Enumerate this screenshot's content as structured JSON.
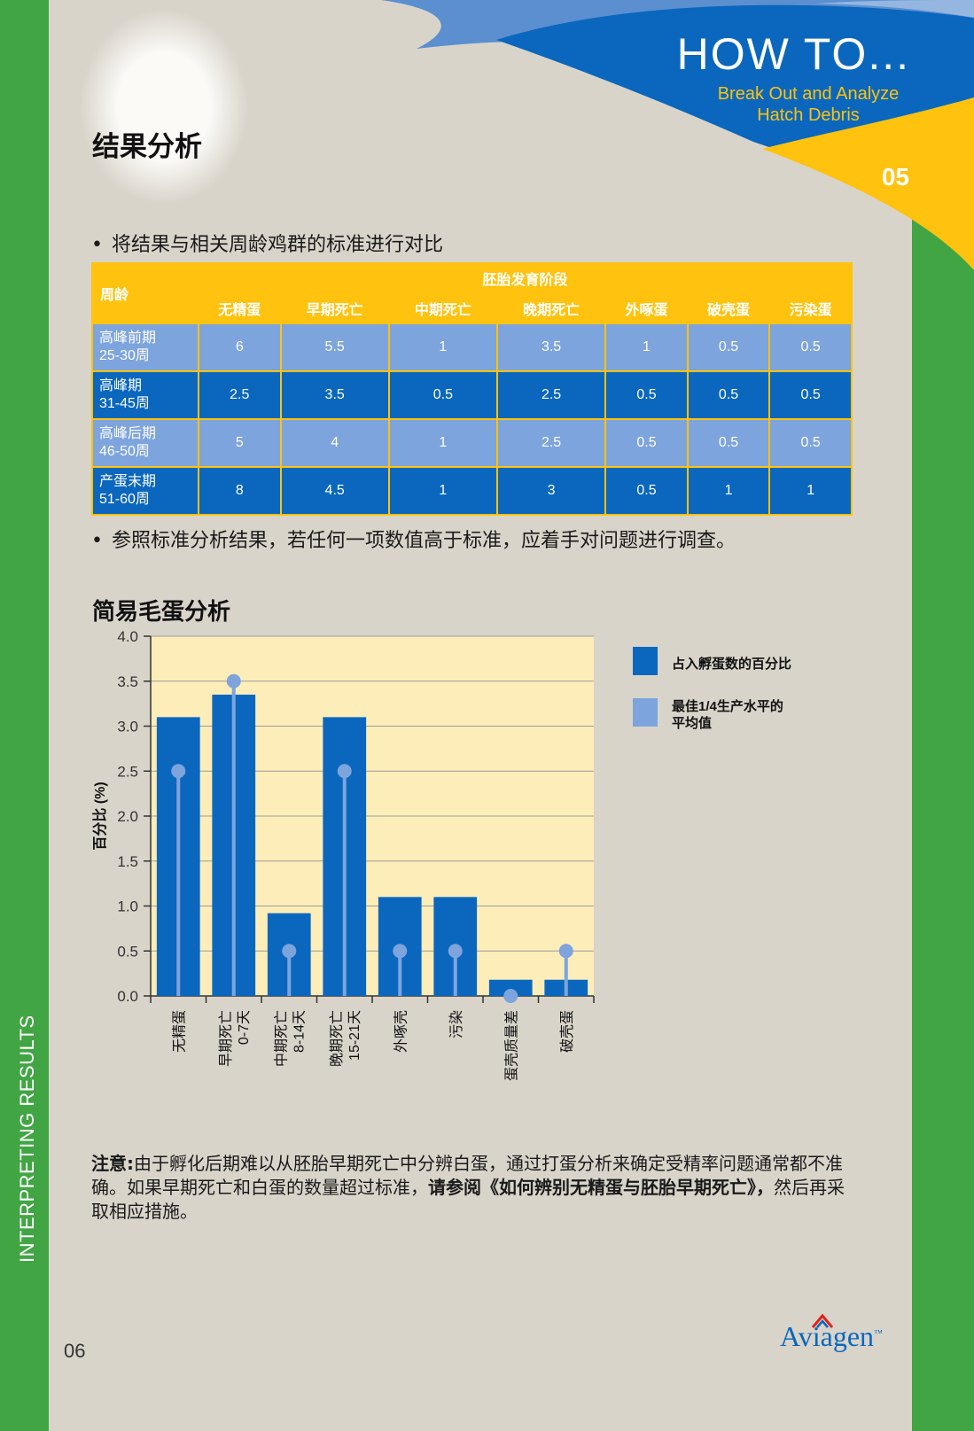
{
  "header": {
    "title": "HOW TO...",
    "subtitle_line1": "Break Out and Analyze",
    "subtitle_line2": "Hatch Debris",
    "chapter": "05",
    "colors": {
      "blue": "#0a67bd",
      "yellow": "#ffc20e",
      "green": "#41a544",
      "light_blue": "#7da4dd"
    }
  },
  "sidebar": {
    "text": "INTERPRETING RESULTS"
  },
  "section": {
    "title": "结果分析",
    "bullet1": "将结果与相关周龄鸡群的标准进行对比",
    "bullet2": "参照标准分析结果，若任何一项数值高于标准，应着手对问题进行调查。"
  },
  "table": {
    "corner_header": "周龄",
    "group_header": "胚胎发育阶段",
    "columns": [
      "无精蛋",
      "早期死亡",
      "中期死亡",
      "晚期死亡",
      "外啄蛋",
      "破壳蛋",
      "污染蛋"
    ],
    "rows": [
      {
        "label1": "高峰前期",
        "label2": "25-30周",
        "values": [
          "6",
          "5.5",
          "1",
          "3.5",
          "1",
          "0.5",
          "0.5"
        ]
      },
      {
        "label1": "高峰期",
        "label2": "31-45周",
        "values": [
          "2.5",
          "3.5",
          "0.5",
          "2.5",
          "0.5",
          "0.5",
          "0.5"
        ]
      },
      {
        "label1": "高峰后期",
        "label2": "46-50周",
        "values": [
          "5",
          "4",
          "1",
          "2.5",
          "0.5",
          "0.5",
          "0.5"
        ]
      },
      {
        "label1": "产蛋末期",
        "label2": "51-60周",
        "values": [
          "8",
          "4.5",
          "1",
          "3",
          "0.5",
          "1",
          "1"
        ]
      }
    ]
  },
  "chart_section_title": "简易毛蛋分析",
  "chart_data": {
    "type": "bar",
    "ylabel": "百分比 (%)",
    "ylim": [
      0,
      4.0
    ],
    "yticks": [
      "0.0",
      "0.5",
      "1.0",
      "1.5",
      "2.0",
      "2.5",
      "3.0",
      "3.5",
      "4.0"
    ],
    "categories": [
      [
        "无精蛋"
      ],
      [
        "早期死亡",
        "0-7天"
      ],
      [
        "中期死亡",
        "8-14天"
      ],
      [
        "晚期死亡",
        "15-21天"
      ],
      [
        "外啄壳"
      ],
      [
        "污染"
      ],
      [
        "蛋壳质量差"
      ],
      [
        "破壳蛋"
      ]
    ],
    "series": [
      {
        "name": "占入孵蛋数的百分比",
        "type": "bar",
        "color": "#0a67bd",
        "values": [
          3.1,
          3.35,
          0.92,
          3.1,
          1.1,
          1.1,
          0.18,
          0.18
        ]
      },
      {
        "name": "最佳1/4生产水平的平均值",
        "type": "lollipop",
        "color": "#7da4dd",
        "values": [
          2.5,
          3.5,
          0.5,
          2.5,
          0.5,
          0.5,
          0.0,
          0.5
        ]
      }
    ],
    "legend": [
      {
        "label": "占入孵蛋数的百分比"
      },
      {
        "label": "最佳1/4生产水平的",
        "label2": "平均值"
      }
    ],
    "grid": true,
    "legend_position": "right",
    "plot_background": "#fdedb9"
  },
  "note": {
    "label": "注意:",
    "text1": "由于孵化后期难以从胚胎早期死亡中分辨白蛋，通过打蛋分析来确定受精率问题通常都不准确。如果早期死亡和白蛋的数量超过标准，",
    "bold": "请参阅《如何辨别无精蛋与胚胎早期死亡》，",
    "text2": "然后再采取相应措施。"
  },
  "footer": {
    "page": "06",
    "logo": "Aviagen",
    "logo_tm": "™"
  }
}
